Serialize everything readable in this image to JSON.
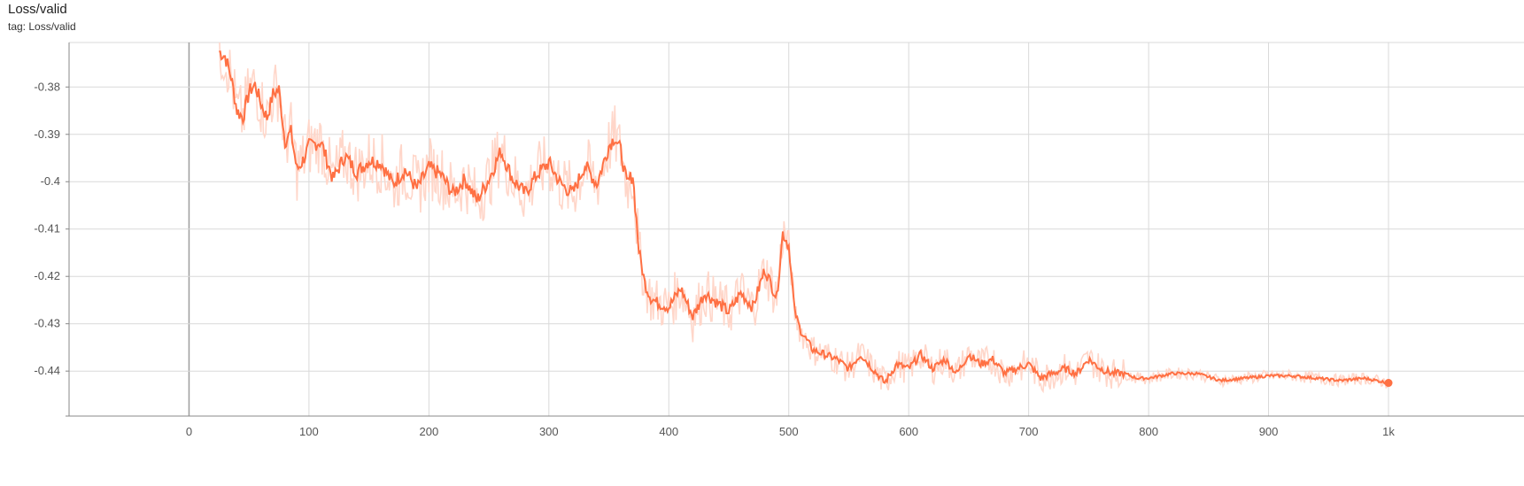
{
  "title": "Loss/valid",
  "tag": "tag: Loss/valid",
  "chart_data": {
    "type": "line",
    "title": "Loss/valid",
    "xlabel": "",
    "ylabel": "",
    "xlim": [
      -100,
      1000
    ],
    "ylim": [
      -0.4495,
      -0.3706
    ],
    "x_ticks": [
      0,
      100,
      200,
      300,
      400,
      500,
      600,
      700,
      800,
      900,
      1000
    ],
    "x_tick_labels": [
      "0",
      "100",
      "200",
      "300",
      "400",
      "500",
      "600",
      "700",
      "800",
      "900",
      "1k"
    ],
    "y_ticks": [
      -0.38,
      -0.39,
      -0.4,
      -0.41,
      -0.42,
      -0.43,
      -0.44
    ],
    "y_tick_labels": [
      "-0.38",
      "-0.39",
      "-0.4",
      "-0.41",
      "-0.42",
      "-0.43",
      "-0.44"
    ],
    "grid": true,
    "colors": {
      "smoothed": "#ff7043",
      "raw": "#ffd6c9",
      "grid": "#d9d9d9",
      "zero_axis": "#9e9e9e"
    },
    "series": [
      {
        "smoothing": "smoothed",
        "x": [
          25,
          30,
          35,
          40,
          45,
          50,
          55,
          60,
          65,
          70,
          75,
          80,
          85,
          90,
          95,
          100,
          110,
          120,
          130,
          140,
          150,
          160,
          170,
          180,
          190,
          200,
          210,
          220,
          230,
          240,
          250,
          260,
          270,
          280,
          290,
          300,
          310,
          320,
          330,
          340,
          350,
          355,
          360,
          365,
          370,
          375,
          380,
          385,
          390,
          400,
          410,
          420,
          430,
          440,
          450,
          460,
          470,
          480,
          490,
          495,
          500,
          505,
          510,
          520,
          530,
          540,
          550,
          560,
          570,
          580,
          590,
          600,
          610,
          620,
          630,
          640,
          650,
          660,
          670,
          680,
          690,
          700,
          710,
          720,
          730,
          740,
          750,
          760,
          770,
          780,
          790,
          800,
          820,
          840,
          860,
          880,
          900,
          920,
          940,
          960,
          980,
          1000
        ],
        "y": [
          -0.3725,
          -0.3735,
          -0.3778,
          -0.385,
          -0.3865,
          -0.381,
          -0.3795,
          -0.3835,
          -0.3865,
          -0.3815,
          -0.3805,
          -0.3915,
          -0.3895,
          -0.3975,
          -0.3955,
          -0.3925,
          -0.3915,
          -0.3995,
          -0.3945,
          -0.398,
          -0.3955,
          -0.396,
          -0.4005,
          -0.3975,
          -0.4015,
          -0.397,
          -0.3985,
          -0.4025,
          -0.3995,
          -0.404,
          -0.3995,
          -0.3935,
          -0.3995,
          -0.4025,
          -0.3985,
          -0.396,
          -0.4005,
          -0.4025,
          -0.3965,
          -0.4005,
          -0.3925,
          -0.3905,
          -0.3935,
          -0.4005,
          -0.3985,
          -0.4145,
          -0.4215,
          -0.4245,
          -0.4255,
          -0.4265,
          -0.4225,
          -0.4285,
          -0.4235,
          -0.4255,
          -0.4275,
          -0.4235,
          -0.4265,
          -0.4185,
          -0.4245,
          -0.4108,
          -0.4135,
          -0.4275,
          -0.4315,
          -0.4355,
          -0.4365,
          -0.4375,
          -0.4395,
          -0.4365,
          -0.4395,
          -0.4425,
          -0.4385,
          -0.4395,
          -0.4365,
          -0.4395,
          -0.4375,
          -0.4405,
          -0.4365,
          -0.4385,
          -0.4375,
          -0.4405,
          -0.4395,
          -0.4385,
          -0.4415,
          -0.4405,
          -0.4395,
          -0.4405,
          -0.4375,
          -0.4395,
          -0.4405,
          -0.4405,
          -0.4415,
          -0.4415,
          -0.4405,
          -0.4405,
          -0.442,
          -0.4415,
          -0.441,
          -0.441,
          -0.4415,
          -0.442,
          -0.4415,
          -0.4425
        ]
      }
    ]
  }
}
